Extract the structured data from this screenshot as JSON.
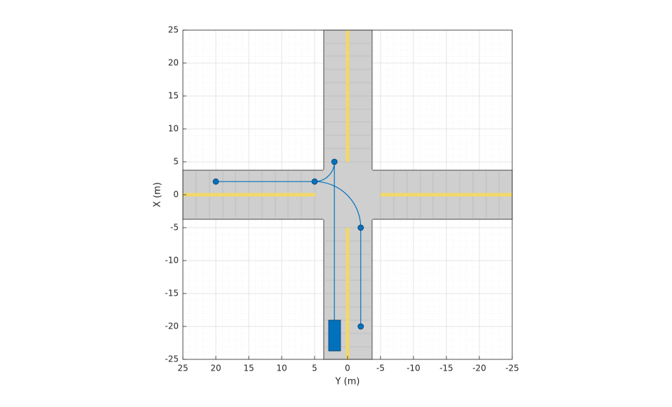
{
  "chart_data": {
    "type": "line",
    "xlabel": "Y (m)",
    "ylabel": "X (m)",
    "xlim": [
      25,
      -25
    ],
    "ylim": [
      -25,
      25
    ],
    "xticks": [
      25,
      20,
      15,
      10,
      5,
      0,
      -5,
      -10,
      -15,
      -20,
      -25
    ],
    "yticks": [
      -25,
      -20,
      -15,
      -10,
      -5,
      0,
      5,
      10,
      15,
      20,
      25
    ],
    "grid": true,
    "color": "#0072bd",
    "series": [
      {
        "x": [
          20,
          5,
          -2,
          -2
        ],
        "y": [
          2,
          2,
          -5,
          -20
        ],
        "color": "#0072bd"
      },
      {
        "x": [
          2,
          2
        ],
        "y": [
          -19,
          5
        ],
        "color": "#0072bd"
      },
      {
        "x": [
          5,
          2
        ],
        "y": [
          2,
          5
        ],
        "color": "#0072bd"
      }
    ],
    "waypoints": {
      "x": [
        20,
        5,
        2,
        -2,
        -2
      ],
      "y": [
        2,
        2,
        5,
        -5,
        -20
      ]
    }
  }
}
